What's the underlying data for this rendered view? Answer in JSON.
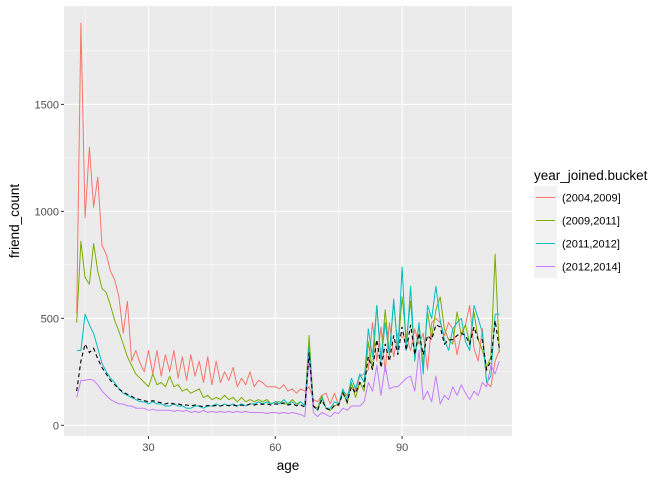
{
  "chart_data": {
    "type": "line",
    "title": "",
    "xlabel": "age",
    "ylabel": "friend_count",
    "xlim": [
      10,
      116
    ],
    "ylim": [
      -50,
      1960
    ],
    "x_ticks": [
      30,
      60,
      90
    ],
    "y_ticks": [
      0,
      500,
      1000,
      1500
    ],
    "grid": true,
    "panel_background": "#ebebeb",
    "legend": {
      "title": "year_joined.bucket",
      "position": "right"
    },
    "series": [
      {
        "name": "(2004,2009]",
        "color": "#f8766d",
        "x": [
          13,
          14,
          15,
          16,
          17,
          18,
          19,
          20,
          21,
          22,
          23,
          24,
          25,
          26,
          27,
          28,
          29,
          30,
          31,
          32,
          33,
          34,
          35,
          36,
          37,
          38,
          39,
          40,
          41,
          42,
          43,
          44,
          45,
          46,
          47,
          48,
          49,
          50,
          51,
          52,
          53,
          54,
          55,
          56,
          57,
          58,
          59,
          60,
          61,
          62,
          63,
          64,
          65,
          66,
          67,
          68,
          69,
          70,
          71,
          72,
          73,
          74,
          75,
          76,
          77,
          78,
          79,
          80,
          81,
          82,
          83,
          84,
          85,
          86,
          87,
          88,
          89,
          90,
          91,
          92,
          93,
          94,
          95,
          96,
          97,
          98,
          99,
          100,
          101,
          102,
          103,
          104,
          105,
          106,
          107,
          108,
          109,
          110,
          111,
          112,
          113
        ],
        "values": [
          520,
          1880,
          970,
          1300,
          1020,
          1160,
          840,
          800,
          720,
          680,
          600,
          430,
          580,
          300,
          350,
          290,
          250,
          350,
          240,
          350,
          230,
          330,
          250,
          350,
          220,
          320,
          210,
          330,
          230,
          300,
          200,
          320,
          190,
          300,
          200,
          250,
          210,
          270,
          180,
          220,
          190,
          250,
          180,
          210,
          200,
          180,
          180,
          180,
          170,
          190,
          160,
          170,
          150,
          170,
          160,
          180,
          120,
          110,
          140,
          150,
          100,
          150,
          90,
          160,
          140,
          190,
          160,
          230,
          240,
          260,
          480,
          300,
          460,
          250,
          480,
          320,
          430,
          410,
          420,
          350,
          450,
          380,
          430,
          260,
          480,
          500,
          480,
          420,
          480,
          450,
          330,
          430,
          470,
          560,
          360,
          300,
          450,
          200,
          180,
          300,
          350
        ]
      },
      {
        "name": "(2009,2011]",
        "color": "#7cae00",
        "x": [
          13,
          14,
          15,
          16,
          17,
          18,
          19,
          20,
          21,
          22,
          23,
          24,
          25,
          26,
          27,
          28,
          29,
          30,
          31,
          32,
          33,
          34,
          35,
          36,
          37,
          38,
          39,
          40,
          41,
          42,
          43,
          44,
          45,
          46,
          47,
          48,
          49,
          50,
          51,
          52,
          53,
          54,
          55,
          56,
          57,
          58,
          59,
          60,
          61,
          62,
          63,
          64,
          65,
          66,
          67,
          68,
          69,
          70,
          71,
          72,
          73,
          74,
          75,
          76,
          77,
          78,
          79,
          80,
          81,
          82,
          83,
          84,
          85,
          86,
          87,
          88,
          89,
          90,
          91,
          92,
          93,
          94,
          95,
          96,
          97,
          98,
          99,
          100,
          101,
          102,
          103,
          104,
          105,
          106,
          107,
          108,
          109,
          110,
          111,
          112,
          113
        ],
        "values": [
          480,
          860,
          690,
          660,
          850,
          720,
          640,
          620,
          560,
          490,
          440,
          380,
          320,
          280,
          240,
          220,
          200,
          180,
          240,
          190,
          200,
          180,
          230,
          180,
          190,
          160,
          170,
          150,
          160,
          170,
          130,
          140,
          120,
          130,
          120,
          140,
          120,
          130,
          110,
          130,
          110,
          120,
          110,
          120,
          110,
          120,
          100,
          110,
          110,
          100,
          100,
          120,
          100,
          110,
          90,
          420,
          90,
          80,
          140,
          80,
          70,
          90,
          100,
          160,
          100,
          200,
          130,
          200,
          160,
          390,
          260,
          560,
          300,
          540,
          330,
          580,
          350,
          600,
          400,
          580,
          320,
          470,
          280,
          530,
          410,
          540,
          600,
          450,
          400,
          380,
          530,
          420,
          470,
          380,
          530,
          400,
          350,
          270,
          320,
          800,
          340
        ]
      },
      {
        "name": "(2011,2012]",
        "color": "#00bfc4",
        "x": [
          13,
          14,
          15,
          16,
          17,
          18,
          19,
          20,
          21,
          22,
          23,
          24,
          25,
          26,
          27,
          28,
          29,
          30,
          31,
          32,
          33,
          34,
          35,
          36,
          37,
          38,
          39,
          40,
          41,
          42,
          43,
          44,
          45,
          46,
          47,
          48,
          49,
          50,
          51,
          52,
          53,
          54,
          55,
          56,
          57,
          58,
          59,
          60,
          61,
          62,
          63,
          64,
          65,
          66,
          67,
          68,
          69,
          70,
          71,
          72,
          73,
          74,
          75,
          76,
          77,
          78,
          79,
          80,
          81,
          82,
          83,
          84,
          85,
          86,
          87,
          88,
          89,
          90,
          91,
          92,
          93,
          94,
          95,
          96,
          97,
          98,
          99,
          100,
          101,
          102,
          103,
          104,
          105,
          106,
          107,
          108,
          109,
          110,
          111,
          112,
          113
        ],
        "values": [
          350,
          350,
          520,
          470,
          430,
          360,
          290,
          250,
          220,
          200,
          170,
          150,
          140,
          130,
          120,
          110,
          110,
          100,
          110,
          100,
          100,
          90,
          90,
          100,
          90,
          90,
          80,
          80,
          90,
          90,
          80,
          90,
          90,
          100,
          90,
          100,
          90,
          100,
          90,
          100,
          90,
          100,
          100,
          110,
          100,
          110,
          100,
          110,
          100,
          120,
          100,
          110,
          90,
          110,
          90,
          370,
          90,
          70,
          130,
          80,
          80,
          110,
          100,
          170,
          120,
          220,
          170,
          240,
          200,
          450,
          320,
          560,
          300,
          480,
          330,
          590,
          340,
          740,
          350,
          650,
          300,
          480,
          240,
          560,
          500,
          650,
          490,
          400,
          350,
          450,
          480,
          500,
          390,
          350,
          560,
          500,
          430,
          200,
          230,
          520,
          520
        ]
      },
      {
        "name": "(2012,2014]",
        "color": "#c77cff",
        "x": [
          13,
          14,
          15,
          16,
          17,
          18,
          19,
          20,
          21,
          22,
          23,
          24,
          25,
          26,
          27,
          28,
          29,
          30,
          31,
          32,
          33,
          34,
          35,
          36,
          37,
          38,
          39,
          40,
          41,
          42,
          43,
          44,
          45,
          46,
          47,
          48,
          49,
          50,
          51,
          52,
          53,
          54,
          55,
          56,
          57,
          58,
          59,
          60,
          61,
          62,
          63,
          64,
          65,
          66,
          67,
          68,
          69,
          70,
          71,
          72,
          73,
          74,
          75,
          76,
          77,
          78,
          79,
          80,
          81,
          82,
          83,
          84,
          85,
          86,
          87,
          88,
          89,
          90,
          91,
          92,
          93,
          94,
          95,
          96,
          97,
          98,
          99,
          100,
          101,
          102,
          103,
          104,
          105,
          106,
          107,
          108,
          109,
          110,
          111,
          112,
          113
        ],
        "values": [
          130,
          210,
          210,
          215,
          210,
          190,
          160,
          140,
          120,
          110,
          100,
          100,
          90,
          90,
          80,
          80,
          80,
          70,
          75,
          70,
          70,
          70,
          70,
          65,
          70,
          65,
          70,
          60,
          65,
          60,
          70,
          60,
          65,
          60,
          65,
          60,
          65,
          60,
          65,
          60,
          65,
          60,
          60,
          60,
          60,
          55,
          60,
          60,
          55,
          60,
          55,
          60,
          55,
          50,
          40,
          320,
          60,
          40,
          60,
          50,
          40,
          60,
          55,
          80,
          70,
          90,
          90,
          90,
          110,
          200,
          160,
          280,
          140,
          280,
          170,
          180,
          180,
          200,
          220,
          230,
          160,
          350,
          120,
          160,
          110,
          230,
          100,
          140,
          120,
          180,
          140,
          190,
          150,
          120,
          160,
          140,
          200,
          180,
          280,
          240,
          300
        ]
      }
    ],
    "mean_line": {
      "color": "#000000",
      "style": "dashed",
      "x": [
        13,
        14,
        15,
        16,
        17,
        18,
        19,
        20,
        21,
        22,
        23,
        24,
        25,
        26,
        27,
        28,
        29,
        30,
        31,
        32,
        33,
        34,
        35,
        36,
        37,
        38,
        39,
        40,
        41,
        42,
        43,
        44,
        45,
        46,
        47,
        48,
        49,
        50,
        51,
        52,
        53,
        54,
        55,
        56,
        57,
        58,
        59,
        60,
        61,
        62,
        63,
        64,
        65,
        66,
        67,
        68,
        69,
        70,
        71,
        72,
        73,
        74,
        75,
        76,
        77,
        78,
        79,
        80,
        81,
        82,
        83,
        84,
        85,
        86,
        87,
        88,
        89,
        90,
        91,
        92,
        93,
        94,
        95,
        96,
        97,
        98,
        99,
        100,
        101,
        102,
        103,
        104,
        105,
        106,
        107,
        108,
        109,
        110,
        111,
        112,
        113
      ],
      "values": [
        160,
        300,
        380,
        340,
        360,
        310,
        270,
        240,
        210,
        190,
        170,
        155,
        145,
        135,
        125,
        120,
        115,
        110,
        115,
        110,
        105,
        100,
        105,
        100,
        100,
        95,
        95,
        90,
        95,
        90,
        88,
        92,
        90,
        92,
        90,
        95,
        92,
        95,
        90,
        95,
        92,
        100,
        95,
        100,
        98,
        100,
        95,
        100,
        98,
        105,
        95,
        100,
        92,
        95,
        85,
        340,
        90,
        70,
        120,
        80,
        70,
        95,
        95,
        150,
        110,
        180,
        150,
        200,
        180,
        320,
        260,
        400,
        270,
        380,
        300,
        420,
        330,
        460,
        350,
        470,
        330,
        430,
        330,
        420,
        400,
        470,
        460,
        380,
        400,
        400,
        420,
        430,
        420,
        380,
        460,
        400,
        400,
        260,
        300,
        490,
        360
      ]
    }
  }
}
